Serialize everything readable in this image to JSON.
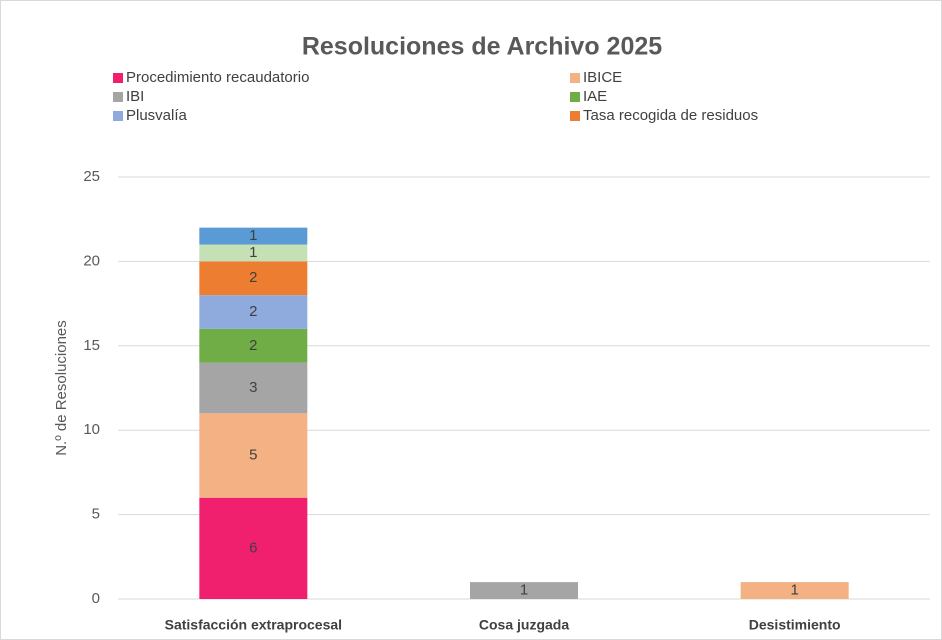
{
  "chart_data": {
    "type": "stacked_bar",
    "title": "Resoluciones de Archivo 2025",
    "y_label": "N.º de Resoluciones",
    "categories": [
      "Satisfacción extraprocesal",
      "Cosa juzgada",
      "Desistimiento"
    ],
    "series": [
      {
        "name": "Procedimiento recaudatorio",
        "color": "#f0206e",
        "values": [
          6,
          null,
          null
        ]
      },
      {
        "name": "IBICE",
        "color": "#f4b183",
        "values": [
          5,
          null,
          1
        ]
      },
      {
        "name": "IBI",
        "color": "#a5a5a5",
        "values": [
          3,
          1,
          null
        ]
      },
      {
        "name": "IAE",
        "color": "#70ad47",
        "values": [
          2,
          null,
          null
        ]
      },
      {
        "name": "Plusvalía",
        "color": "#8faadc",
        "values": [
          2,
          null,
          null
        ]
      },
      {
        "name": "Tasa recogida de residuos",
        "color": "#ed7d31",
        "values": [
          2,
          null,
          null
        ]
      },
      {
        "color": "#c5e0b4",
        "values": [
          1,
          null,
          null
        ]
      },
      {
        "color": "#5b9bd5",
        "values": [
          1,
          null,
          null
        ]
      }
    ],
    "ylim": [
      0,
      25
    ],
    "yticks": [
      0,
      5,
      10,
      15,
      20,
      25
    ],
    "grid": true
  }
}
